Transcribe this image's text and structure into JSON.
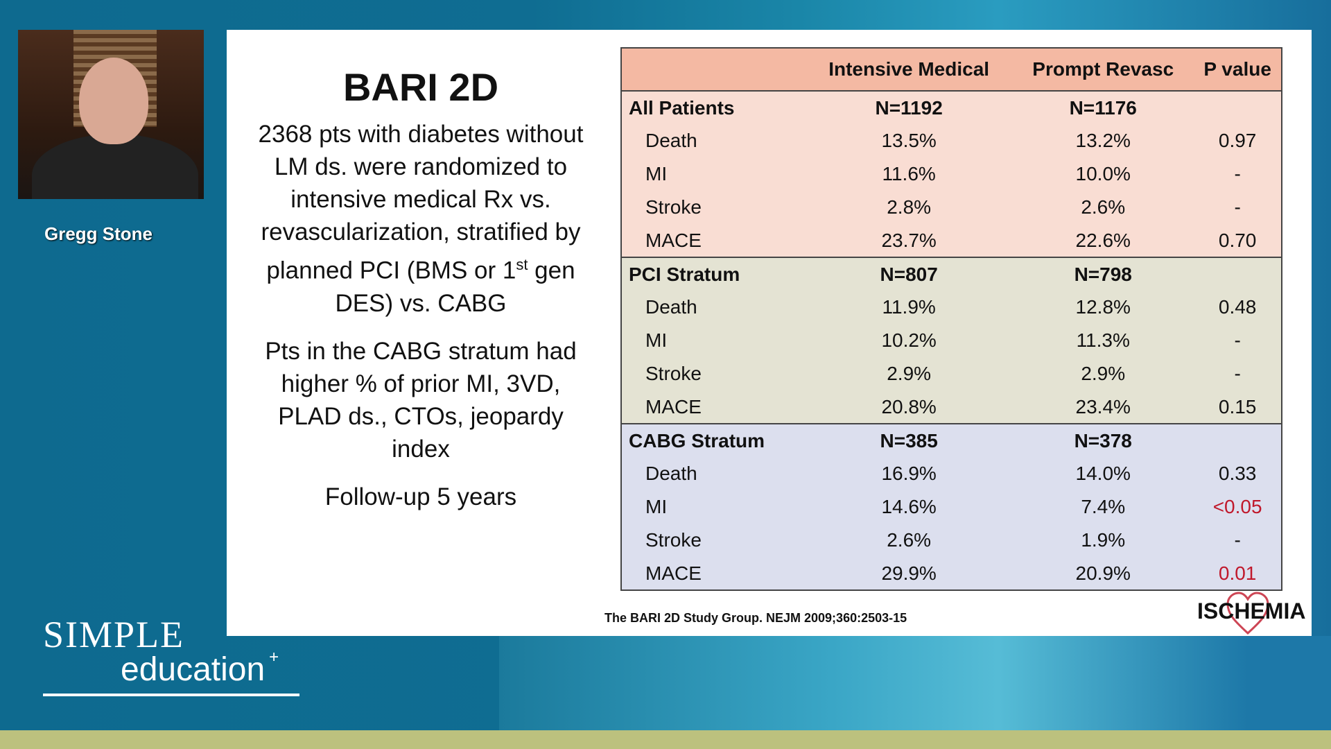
{
  "presenter": {
    "name": "Gregg Stone"
  },
  "branding": {
    "line1": "SIMPLE",
    "line2": "education",
    "mark": "+"
  },
  "slide": {
    "title": "BARI 2D",
    "para1_a": "2368 pts with diabetes without LM ds. were randomized to intensive medical Rx vs. revascularization, stratified by planned PCI (BMS or ",
    "para1_sup_num": "1",
    "para1_sup": "st",
    "para1_b": " gen DES) vs. CABG",
    "para2": "Pts in the CABG stratum had higher % of prior MI, 3VD, PLAD ds., CTOs, jeopardy index",
    "para3": "Follow-up 5 years",
    "citation": "The BARI 2D Study Group. NEJM 2009;360:2503-15",
    "logo": "ISCHEMIA",
    "table": {
      "headers": [
        "",
        "Intensive Medical",
        "Prompt Revasc",
        "P value"
      ],
      "sections": [
        {
          "label": "All Patients",
          "n1": "N=1192",
          "n2": "N=1176",
          "rows": [
            [
              "Death",
              "13.5%",
              "13.2%",
              "0.97"
            ],
            [
              "MI",
              "11.6%",
              "10.0%",
              "-"
            ],
            [
              "Stroke",
              "2.8%",
              "2.6%",
              "-"
            ],
            [
              "MACE",
              "23.7%",
              "22.6%",
              "0.70"
            ]
          ]
        },
        {
          "label": "PCI Stratum",
          "n1": "N=807",
          "n2": "N=798",
          "rows": [
            [
              "Death",
              "11.9%",
              "12.8%",
              "0.48"
            ],
            [
              "MI",
              "10.2%",
              "11.3%",
              "-"
            ],
            [
              "Stroke",
              "2.9%",
              "2.9%",
              "-"
            ],
            [
              "MACE",
              "20.8%",
              "23.4%",
              "0.15"
            ]
          ]
        },
        {
          "label": "CABG Stratum",
          "n1": "N=385",
          "n2": "N=378",
          "rows": [
            [
              "Death",
              "16.9%",
              "14.0%",
              "0.33"
            ],
            [
              "MI",
              "14.6%",
              "7.4%",
              "<0.05"
            ],
            [
              "Stroke",
              "2.6%",
              "1.9%",
              "-"
            ],
            [
              "MACE",
              "29.9%",
              "20.9%",
              "0.01"
            ]
          ]
        }
      ]
    }
  },
  "colors": {
    "significant": "#c0182b"
  }
}
